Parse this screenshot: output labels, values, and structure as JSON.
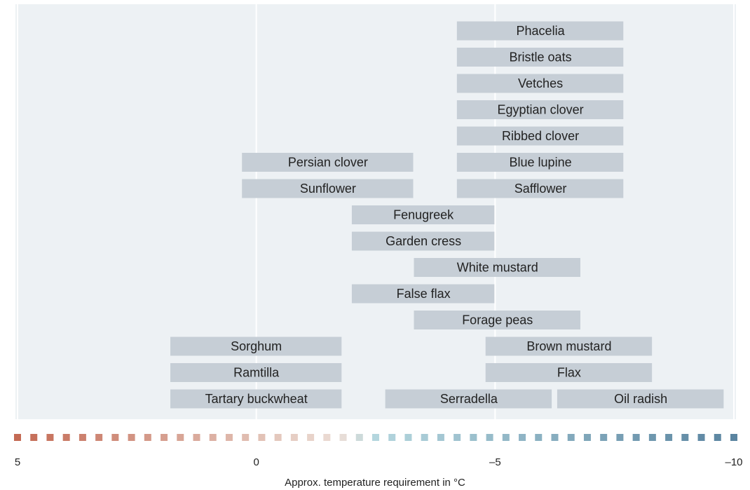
{
  "chart_data": {
    "type": "range-bar",
    "x_label": "Approx. temperature requirement in °C",
    "xlim": [
      5,
      -10
    ],
    "xticks": [
      5,
      0,
      {
        "value": -5,
        "label": "–5"
      },
      {
        "value": -10,
        "label": "–10"
      }
    ],
    "grid": true,
    "color": "#c6ced6",
    "rows": [
      [
        {
          "name": "Phacelia",
          "start": -4.2,
          "end": -7.7
        }
      ],
      [
        {
          "name": "Bristle oats",
          "start": -4.2,
          "end": -7.7
        }
      ],
      [
        {
          "name": "Vetches",
          "start": -4.2,
          "end": -7.7
        }
      ],
      [
        {
          "name": "Egyptian clover",
          "start": -4.2,
          "end": -7.7
        }
      ],
      [
        {
          "name": "Ribbed clover",
          "start": -4.2,
          "end": -7.7
        }
      ],
      [
        {
          "name": "Persian clover",
          "start": 0.3,
          "end": -3.3
        },
        {
          "name": "Blue lupine",
          "start": -4.2,
          "end": -7.7
        }
      ],
      [
        {
          "name": "Sunflower",
          "start": 0.3,
          "end": -3.3
        },
        {
          "name": "Safflower",
          "start": -4.2,
          "end": -7.7
        }
      ],
      [
        {
          "name": "Fenugreek",
          "start": -2.0,
          "end": -5.0
        }
      ],
      [
        {
          "name": "Garden cress",
          "start": -2.0,
          "end": -5.0
        }
      ],
      [
        {
          "name": "White mustard",
          "start": -3.3,
          "end": -6.8
        }
      ],
      [
        {
          "name": "False flax",
          "start": -2.0,
          "end": -5.0
        }
      ],
      [
        {
          "name": "Forage peas",
          "start": -3.3,
          "end": -6.8
        }
      ],
      [
        {
          "name": "Sorghum",
          "start": 1.8,
          "end": -1.8
        },
        {
          "name": "Brown mustard",
          "start": -4.8,
          "end": -8.3
        }
      ],
      [
        {
          "name": "Ramtilla",
          "start": 1.8,
          "end": -1.8
        },
        {
          "name": "Flax",
          "start": -4.8,
          "end": -8.3
        }
      ],
      [
        {
          "name": "Tartary buckwheat",
          "start": 1.8,
          "end": -1.8
        },
        {
          "name": "Serradella",
          "start": -2.7,
          "end": -6.2
        },
        {
          "name": "Oil radish",
          "start": -6.3,
          "end": -9.8
        }
      ]
    ]
  }
}
